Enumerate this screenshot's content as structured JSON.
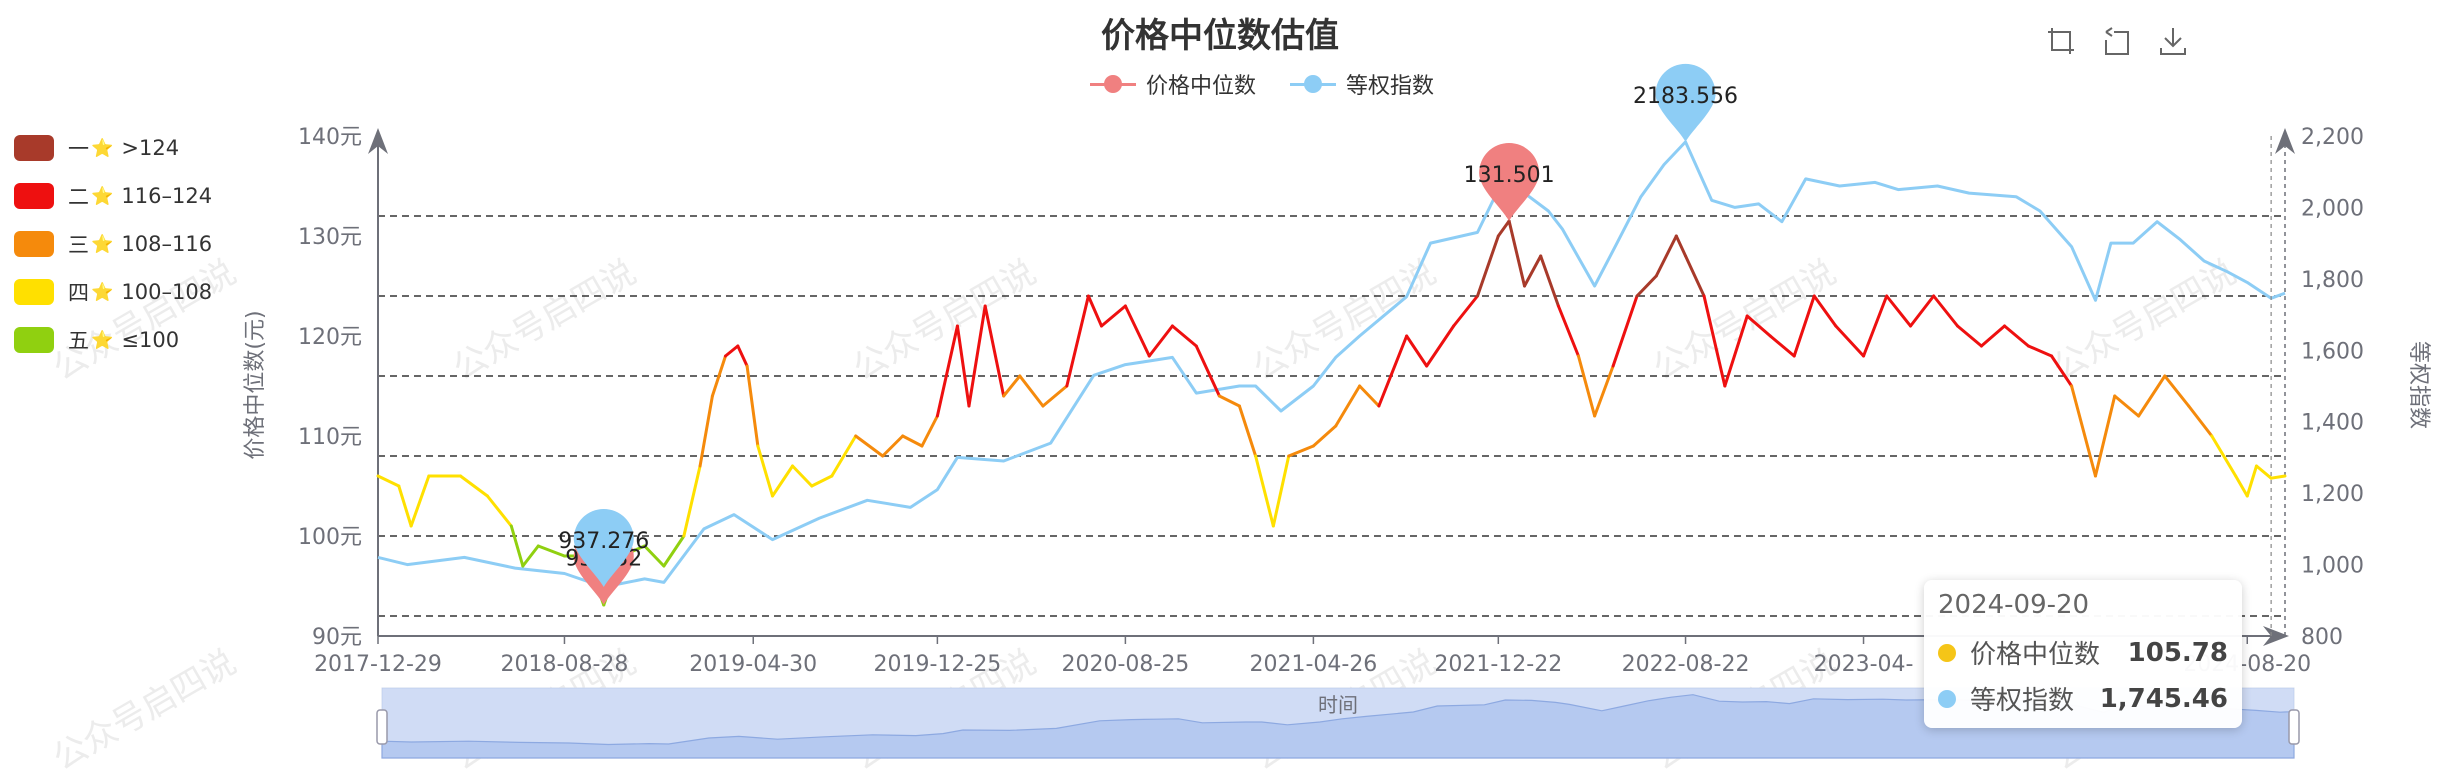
{
  "title": "价格中位数估值",
  "toolbox": {
    "icons": [
      "zoom-icon",
      "zoom-reset-icon",
      "download-icon"
    ]
  },
  "legend_top": [
    {
      "name": "价格中位数",
      "color": "#f08080"
    },
    {
      "name": "等权指数",
      "color": "#8dcdf5"
    }
  ],
  "legend_left": [
    {
      "label": "一",
      "range": ">124",
      "color": "#a83a2a"
    },
    {
      "label": "二",
      "range": "116–124",
      "color": "#ee1010"
    },
    {
      "label": "三",
      "range": "108–116",
      "color": "#f58a0c"
    },
    {
      "label": "四",
      "range": "100–108",
      "color": "#ffe000"
    },
    {
      "label": "五",
      "range": "≤100",
      "color": "#90d010"
    }
  ],
  "star": "⭐",
  "tooltip": {
    "date": "2024-09-20",
    "rows": [
      {
        "name": "价格中位数",
        "value": "105.78",
        "color": "#f5c518"
      },
      {
        "name": "等权指数",
        "value": "1,745.46",
        "color": "#8dcdf5"
      }
    ]
  },
  "watermark": "公众号启四说",
  "slider_label": "时间",
  "chart_data": {
    "type": "line",
    "title": "价格中位数估值",
    "x_tick_labels": [
      "2017-12-29",
      "2018-08-28",
      "2019-04-30",
      "2019-12-25",
      "2020-08-25",
      "2021-04-26",
      "2021-12-22",
      "2022-08-22",
      "2023-04-",
      "2024-08-20"
    ],
    "x_range": [
      "2017-12-29",
      "2024-10-08"
    ],
    "y_left": {
      "label": "价格中位数(元)",
      "ticks": [
        "90元",
        "100元",
        "110元",
        "120元",
        "130元",
        "140元"
      ],
      "range": [
        90,
        140
      ]
    },
    "y_right": {
      "label": "等权指数",
      "ticks": [
        "800",
        "1,000",
        "1,200",
        "1,400",
        "1,600",
        "1,800",
        "2,000",
        "2,200"
      ],
      "range": [
        800,
        2200
      ]
    },
    "thresholds": [
      92,
      100,
      108,
      116,
      124,
      132
    ],
    "series": [
      {
        "name": "价格中位数",
        "axis": "left",
        "color_bands": [
          {
            "max": 100,
            "color": "#90d010"
          },
          {
            "max": 108,
            "color": "#ffe000"
          },
          {
            "max": 116,
            "color": "#f58a0c"
          },
          {
            "max": 124,
            "color": "#ee1010"
          },
          {
            "max": 999,
            "color": "#a83a2a"
          }
        ],
        "points": [
          [
            "2017-12-29",
            106
          ],
          [
            "2018-01-25",
            105
          ],
          [
            "2018-02-10",
            101
          ],
          [
            "2018-03-05",
            106
          ],
          [
            "2018-04-15",
            106
          ],
          [
            "2018-05-20",
            104
          ],
          [
            "2018-06-20",
            101
          ],
          [
            "2018-07-05",
            97
          ],
          [
            "2018-07-25",
            99
          ],
          [
            "2018-08-28",
            98
          ],
          [
            "2018-09-25",
            98
          ],
          [
            "2018-10-18",
            93.1
          ],
          [
            "2018-11-10",
            98
          ],
          [
            "2018-12-10",
            99
          ],
          [
            "2019-01-04",
            97
          ],
          [
            "2019-01-30",
            100
          ],
          [
            "2019-02-20",
            107
          ],
          [
            "2019-03-08",
            114
          ],
          [
            "2019-03-25",
            118
          ],
          [
            "2019-04-10",
            119
          ],
          [
            "2019-04-22",
            117
          ],
          [
            "2019-05-06",
            109
          ],
          [
            "2019-05-25",
            104
          ],
          [
            "2019-06-20",
            107
          ],
          [
            "2019-07-15",
            105
          ],
          [
            "2019-08-10",
            106
          ],
          [
            "2019-09-10",
            110
          ],
          [
            "2019-10-15",
            108
          ],
          [
            "2019-11-10",
            110
          ],
          [
            "2019-12-05",
            109
          ],
          [
            "2019-12-25",
            112
          ],
          [
            "2020-01-20",
            121
          ],
          [
            "2020-02-04",
            113
          ],
          [
            "2020-02-25",
            123
          ],
          [
            "2020-03-20",
            114
          ],
          [
            "2020-04-10",
            116
          ],
          [
            "2020-05-10",
            113
          ],
          [
            "2020-06-10",
            115
          ],
          [
            "2020-07-08",
            124
          ],
          [
            "2020-07-25",
            121
          ],
          [
            "2020-08-25",
            123
          ],
          [
            "2020-09-25",
            118
          ],
          [
            "2020-10-25",
            121
          ],
          [
            "2020-11-25",
            119
          ],
          [
            "2020-12-25",
            114
          ],
          [
            "2021-01-20",
            113
          ],
          [
            "2021-02-10",
            108
          ],
          [
            "2021-03-05",
            101
          ],
          [
            "2021-03-25",
            108
          ],
          [
            "2021-04-26",
            109
          ],
          [
            "2021-05-25",
            111
          ],
          [
            "2021-06-25",
            115
          ],
          [
            "2021-07-20",
            113
          ],
          [
            "2021-08-25",
            120
          ],
          [
            "2021-09-20",
            117
          ],
          [
            "2021-10-25",
            121
          ],
          [
            "2021-11-25",
            124
          ],
          [
            "2021-12-22",
            130
          ],
          [
            "2022-01-05",
            131.5
          ],
          [
            "2022-01-25",
            125
          ],
          [
            "2022-02-15",
            128
          ],
          [
            "2022-03-10",
            123
          ],
          [
            "2022-04-05",
            118
          ],
          [
            "2022-04-26",
            112
          ],
          [
            "2022-05-20",
            117
          ],
          [
            "2022-06-20",
            124
          ],
          [
            "2022-07-15",
            126
          ],
          [
            "2022-08-10",
            130
          ],
          [
            "2022-08-22",
            128
          ],
          [
            "2022-09-15",
            124
          ],
          [
            "2022-10-12",
            115
          ],
          [
            "2022-11-10",
            122
          ],
          [
            "2022-12-10",
            120
          ],
          [
            "2023-01-10",
            118
          ],
          [
            "2023-02-05",
            124
          ],
          [
            "2023-03-05",
            121
          ],
          [
            "2023-04-10",
            118
          ],
          [
            "2023-05-10",
            124
          ],
          [
            "2023-06-10",
            121
          ],
          [
            "2023-07-10",
            124
          ],
          [
            "2023-08-10",
            121
          ],
          [
            "2023-09-10",
            119
          ],
          [
            "2023-10-10",
            121
          ],
          [
            "2023-11-10",
            119
          ],
          [
            "2023-12-10",
            118
          ],
          [
            "2024-01-05",
            115
          ],
          [
            "2024-02-05",
            106
          ],
          [
            "2024-03-01",
            114
          ],
          [
            "2024-04-01",
            112
          ],
          [
            "2024-05-05",
            116
          ],
          [
            "2024-06-05",
            113
          ],
          [
            "2024-07-05",
            110
          ],
          [
            "2024-08-05",
            106
          ],
          [
            "2024-08-20",
            104
          ],
          [
            "2024-09-01",
            107
          ],
          [
            "2024-09-20",
            105.78
          ],
          [
            "2024-10-08",
            106
          ]
        ]
      },
      {
        "name": "等权指数",
        "axis": "right",
        "color": "#8dcdf5",
        "points": [
          [
            "2017-12-29",
            1020
          ],
          [
            "2018-02-05",
            1000
          ],
          [
            "2018-04-20",
            1020
          ],
          [
            "2018-06-25",
            990
          ],
          [
            "2018-08-28",
            975
          ],
          [
            "2018-10-18",
            937.3
          ],
          [
            "2018-12-10",
            960
          ],
          [
            "2019-01-04",
            950
          ],
          [
            "2019-02-25",
            1100
          ],
          [
            "2019-04-05",
            1140
          ],
          [
            "2019-05-25",
            1070
          ],
          [
            "2019-07-25",
            1130
          ],
          [
            "2019-09-25",
            1180
          ],
          [
            "2019-11-20",
            1160
          ],
          [
            "2019-12-25",
            1210
          ],
          [
            "2020-01-20",
            1300
          ],
          [
            "2020-03-20",
            1290
          ],
          [
            "2020-05-20",
            1340
          ],
          [
            "2020-07-15",
            1530
          ],
          [
            "2020-08-25",
            1560
          ],
          [
            "2020-09-25",
            1570
          ],
          [
            "2020-10-25",
            1580
          ],
          [
            "2020-11-25",
            1480
          ],
          [
            "2021-01-20",
            1500
          ],
          [
            "2021-02-10",
            1500
          ],
          [
            "2021-03-15",
            1430
          ],
          [
            "2021-04-26",
            1500
          ],
          [
            "2021-05-25",
            1580
          ],
          [
            "2021-06-25",
            1640
          ],
          [
            "2021-08-25",
            1750
          ],
          [
            "2021-09-25",
            1900
          ],
          [
            "2021-11-25",
            1930
          ],
          [
            "2021-12-22",
            2050
          ],
          [
            "2022-01-25",
            2040
          ],
          [
            "2022-02-25",
            1990
          ],
          [
            "2022-03-15",
            1940
          ],
          [
            "2022-04-26",
            1780
          ],
          [
            "2022-05-25",
            1900
          ],
          [
            "2022-06-25",
            2030
          ],
          [
            "2022-07-25",
            2120
          ],
          [
            "2022-08-22",
            2183.6
          ],
          [
            "2022-09-25",
            2020
          ],
          [
            "2022-10-25",
            2000
          ],
          [
            "2022-11-25",
            2010
          ],
          [
            "2022-12-25",
            1960
          ],
          [
            "2023-01-25",
            2080
          ],
          [
            "2023-03-10",
            2060
          ],
          [
            "2023-04-25",
            2070
          ],
          [
            "2023-05-25",
            2050
          ],
          [
            "2023-07-15",
            2060
          ],
          [
            "2023-08-25",
            2040
          ],
          [
            "2023-10-25",
            2030
          ],
          [
            "2023-11-25",
            1990
          ],
          [
            "2024-01-05",
            1890
          ],
          [
            "2024-02-05",
            1740
          ],
          [
            "2024-02-25",
            1900
          ],
          [
            "2024-03-25",
            1900
          ],
          [
            "2024-04-25",
            1960
          ],
          [
            "2024-05-25",
            1910
          ],
          [
            "2024-06-25",
            1850
          ],
          [
            "2024-07-25",
            1820
          ],
          [
            "2024-08-20",
            1790
          ],
          [
            "2024-09-20",
            1745.5
          ],
          [
            "2024-10-08",
            1760
          ]
        ]
      }
    ],
    "markers": [
      {
        "series": "价格中位数",
        "date": "2018-10-18",
        "value": 93.132,
        "label": "93.132",
        "color": "#f08080"
      },
      {
        "series": "等权指数",
        "date": "2018-10-18",
        "value": 937.276,
        "label": "937.276",
        "color": "#8dcdf5"
      },
      {
        "series": "价格中位数",
        "date": "2022-01-05",
        "value": 131.501,
        "label": "131.501",
        "color": "#f08080"
      },
      {
        "series": "等权指数",
        "date": "2022-08-22",
        "value": 2183.556,
        "label": "2183.556",
        "color": "#8dcdf5"
      }
    ],
    "grid": false,
    "legend": "top"
  }
}
